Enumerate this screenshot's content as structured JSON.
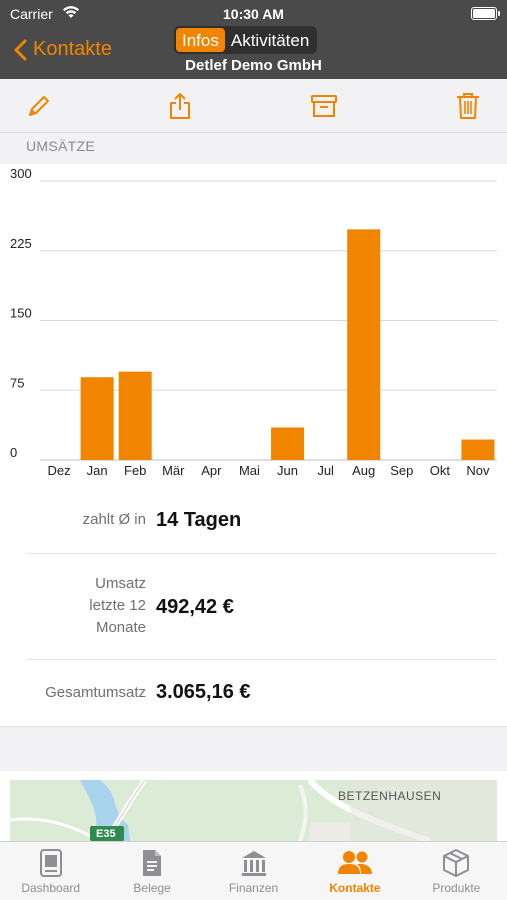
{
  "status": {
    "carrier": "Carrier",
    "time": "10:30 AM"
  },
  "nav": {
    "back_label": "Kontakte",
    "segments": [
      "Infos",
      "Aktivitäten"
    ],
    "active_segment": 0,
    "company": "Detlef Demo GmbH"
  },
  "toolbar": {
    "icons": [
      "pencil-icon",
      "share-icon",
      "archive-icon",
      "trash-icon"
    ]
  },
  "section": {
    "title": "UMSÄTZE"
  },
  "chart_data": {
    "type": "bar",
    "categories": [
      "Dez",
      "Jan",
      "Feb",
      "Mär",
      "Apr",
      "Mai",
      "Jun",
      "Jul",
      "Aug",
      "Sep",
      "Okt",
      "Nov"
    ],
    "values": [
      0,
      89,
      95,
      0,
      0,
      0,
      35,
      0,
      248,
      0,
      0,
      22
    ],
    "ylim": [
      0,
      300
    ],
    "yticks": [
      "0",
      "75",
      "150",
      "225",
      "300"
    ],
    "grid": true,
    "color": "#f28500"
  },
  "info": {
    "pay_label": "zahlt Ø in",
    "pay_value": "14 Tagen",
    "revenue12_label_lines": [
      "Umsatz",
      "letzte 12",
      "Monate"
    ],
    "revenue12_value": "492,42 €",
    "total_label": "Gesamtumsatz",
    "total_value": "3.065,16 €"
  },
  "map": {
    "place_label": "BETZENHAUSEN",
    "road_shield": "E35"
  },
  "tabs": [
    {
      "label": "Dashboard",
      "icon": "dashboard-icon"
    },
    {
      "label": "Belege",
      "icon": "document-icon"
    },
    {
      "label": "Finanzen",
      "icon": "bank-icon"
    },
    {
      "label": "Kontakte",
      "icon": "people-icon"
    },
    {
      "label": "Produkte",
      "icon": "box-icon"
    }
  ],
  "active_tab": 3,
  "colors": {
    "accent": "#f28500",
    "navbar": "#4a4a4a"
  }
}
